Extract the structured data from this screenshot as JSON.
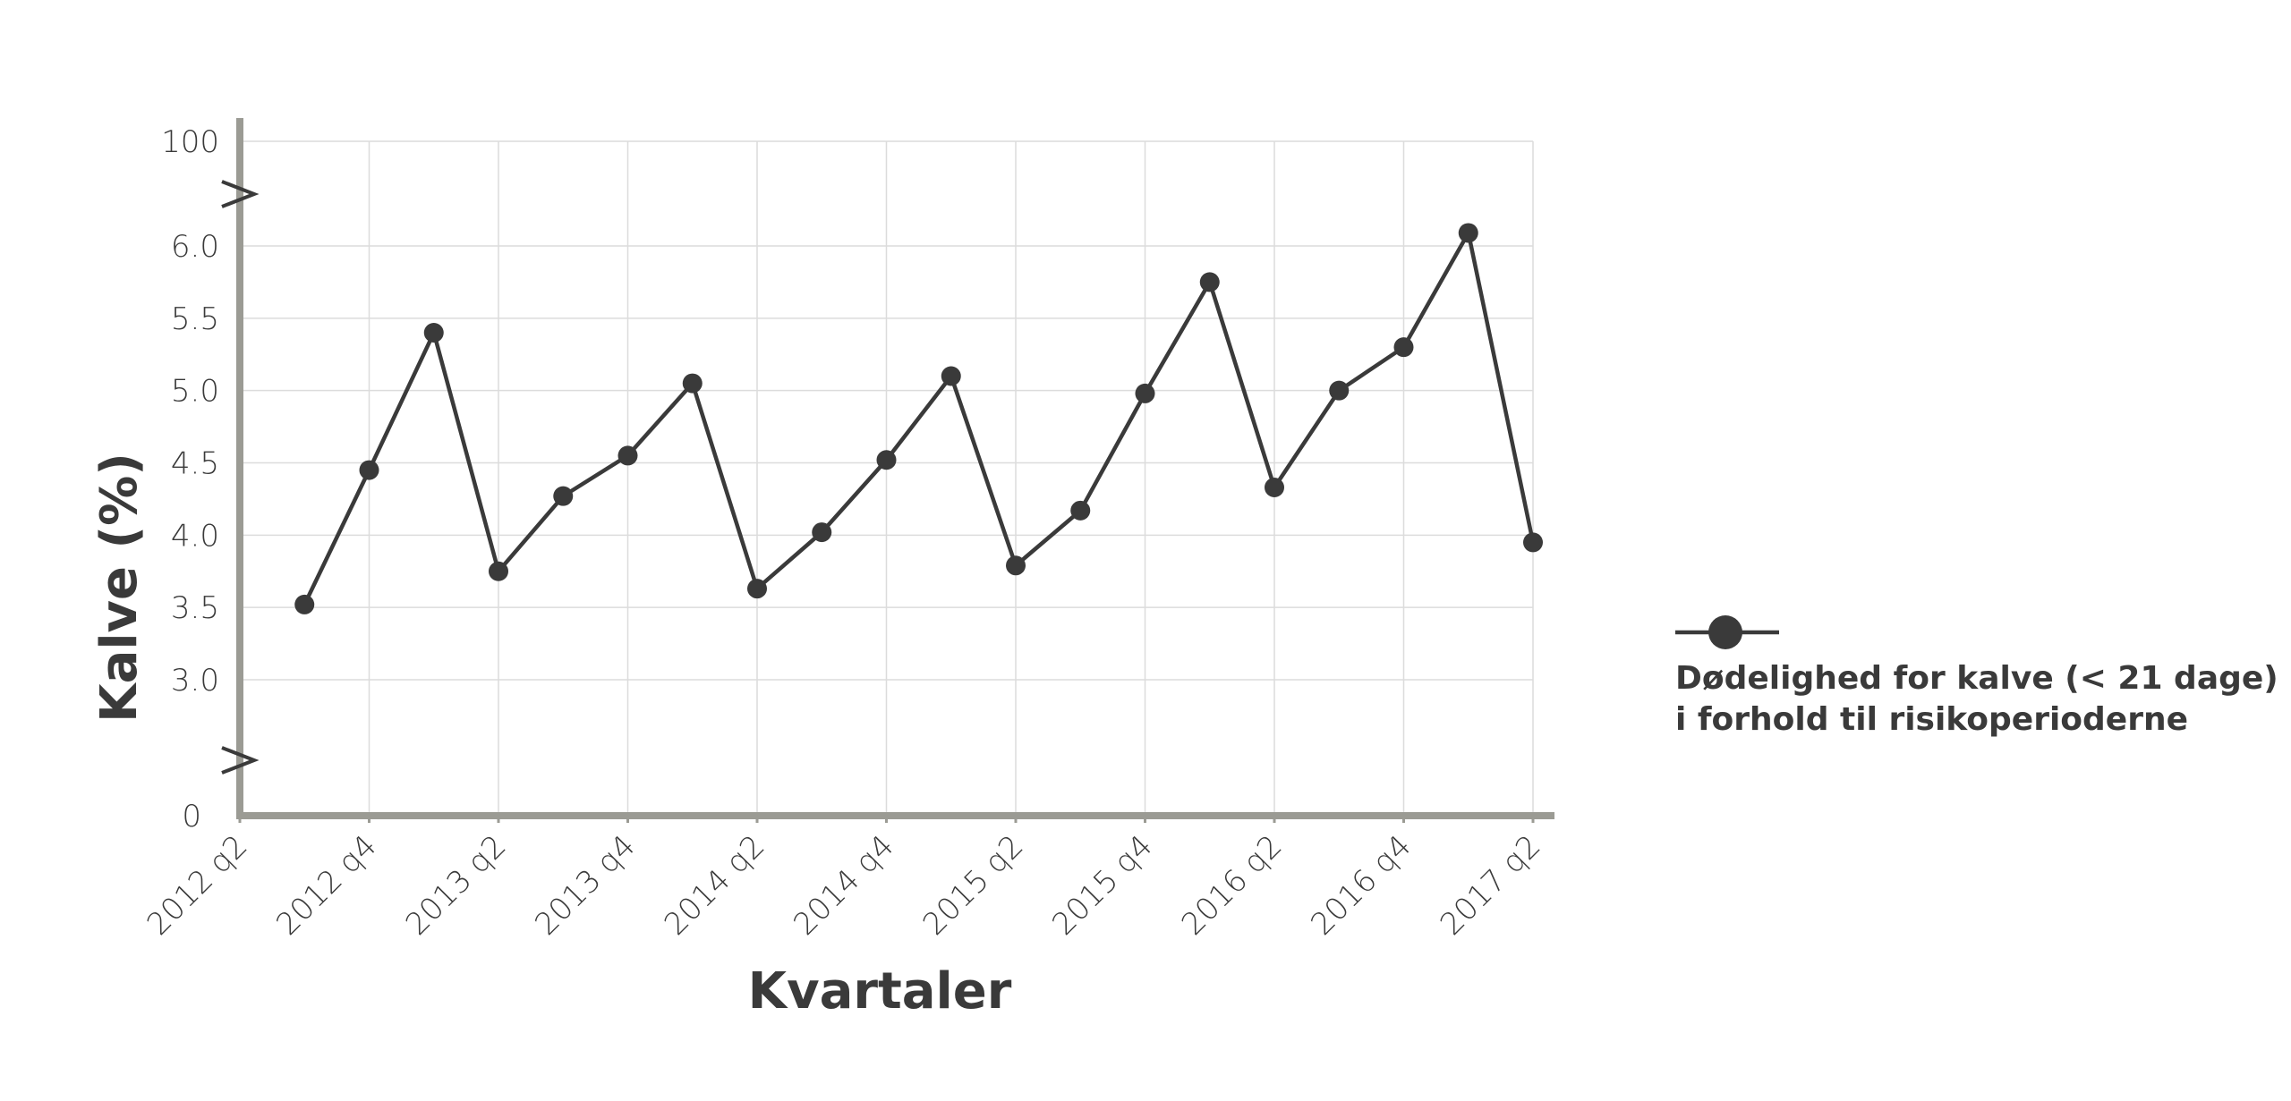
{
  "chart_data": {
    "type": "line",
    "xlabel": "Kvartaler",
    "ylabel": "Kalve (%)",
    "x_tick_labels": [
      "2012 q2",
      "2012 q4",
      "2013 q2",
      "2013 q4",
      "2014 q2",
      "2014 q4",
      "2015 q2",
      "2015 q4",
      "2016 q2",
      "2016 q4",
      "2017 q2"
    ],
    "y_tick_labels_main": [
      "3.0",
      "3.5",
      "4.0",
      "4.5",
      "5.0",
      "5.5",
      "6.0"
    ],
    "y_tick_label_bottom": "0",
    "y_tick_label_top": "100",
    "y_axis_break": true,
    "ylim": [
      3.0,
      6.0
    ],
    "grid": true,
    "legend_position": "right",
    "series": [
      {
        "name": "Dødelighed for kalve (< 21 dage) i forhold til risikoperioderne",
        "color": "#3a3a3a",
        "x": [
          "2012 q3",
          "2012 q4",
          "2013 q1",
          "2013 q2",
          "2013 q3",
          "2013 q4",
          "2014 q1",
          "2014 q2",
          "2014 q3",
          "2014 q4",
          "2015 q1",
          "2015 q2",
          "2015 q3",
          "2015 q4",
          "2016 q1",
          "2016 q2",
          "2016 q3",
          "2016 q4",
          "2017 q1",
          "2017 q2"
        ],
        "values": [
          3.52,
          4.45,
          5.4,
          3.75,
          4.27,
          4.55,
          5.05,
          3.63,
          4.02,
          4.52,
          5.1,
          3.79,
          4.17,
          4.98,
          5.75,
          4.33,
          5.0,
          5.3,
          6.09,
          3.95
        ]
      }
    ]
  },
  "legend": {
    "line1": "Dødelighed for kalve (< 21 dage)",
    "line2": "i forhold til risikoperioderne"
  }
}
